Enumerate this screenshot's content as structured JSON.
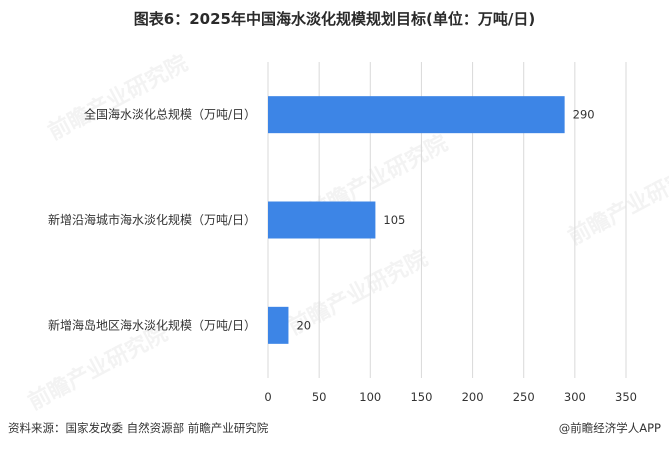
{
  "title": "图表6：2025年中国海水淡化规模规划目标(单位：万吨/日)",
  "chart_data": {
    "type": "bar",
    "orientation": "horizontal",
    "categories": [
      "全国海水淡化总规模（万吨/日）",
      "新增沿海城市海水淡化规模（万吨/日）",
      "新增海岛地区海水淡化规模（万吨/日）"
    ],
    "values": [
      290,
      105,
      20
    ],
    "xlim": [
      0,
      350
    ],
    "xticks": [
      0,
      50,
      100,
      150,
      200,
      250,
      300,
      350
    ],
    "grid": "vertical",
    "bar_color": "#3d85e6"
  },
  "footer": {
    "source": "资料来源：国家发改委 自然资源部 前瞻产业研究院",
    "brand": "@前瞻经济学人APP"
  },
  "watermark_text": "前瞻产业研究院"
}
